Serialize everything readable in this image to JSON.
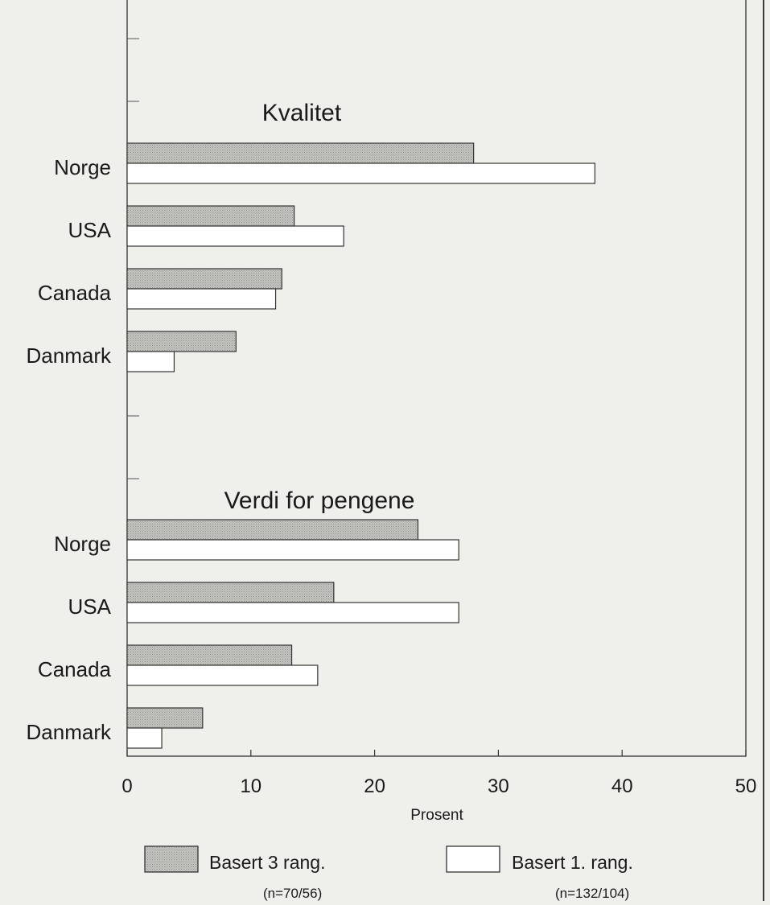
{
  "chart_data": {
    "type": "bar",
    "orientation": "horizontal",
    "xlabel": "Prosent",
    "xlim": [
      0,
      50
    ],
    "xticks": [
      "0",
      "10",
      "20",
      "30",
      "40",
      "50"
    ],
    "grid": false,
    "legend_position": "bottom",
    "colors": {
      "series1": "#b8b8b4",
      "series2": "#ffffff",
      "frame": "#333333",
      "background": "#efefec"
    },
    "series": [
      {
        "name": "Basert 3 rang.",
        "note": "(n=70/56)"
      },
      {
        "name": "Basert 1. rang.",
        "note": "(n=132/104)"
      }
    ],
    "groups": [
      {
        "title": "Kvalitet",
        "categories": [
          "Norge",
          "USA",
          "Canada",
          "Danmark"
        ],
        "values": [
          [
            28,
            13.5,
            12.5,
            8.8
          ],
          [
            37.8,
            17.5,
            12,
            3.8
          ]
        ]
      },
      {
        "title": "Verdi for pengene",
        "categories": [
          "Norge",
          "USA",
          "Canada",
          "Danmark"
        ],
        "values": [
          [
            23.5,
            16.7,
            13.3,
            6.1
          ],
          [
            26.8,
            26.8,
            15.4,
            2.8
          ]
        ]
      }
    ]
  }
}
